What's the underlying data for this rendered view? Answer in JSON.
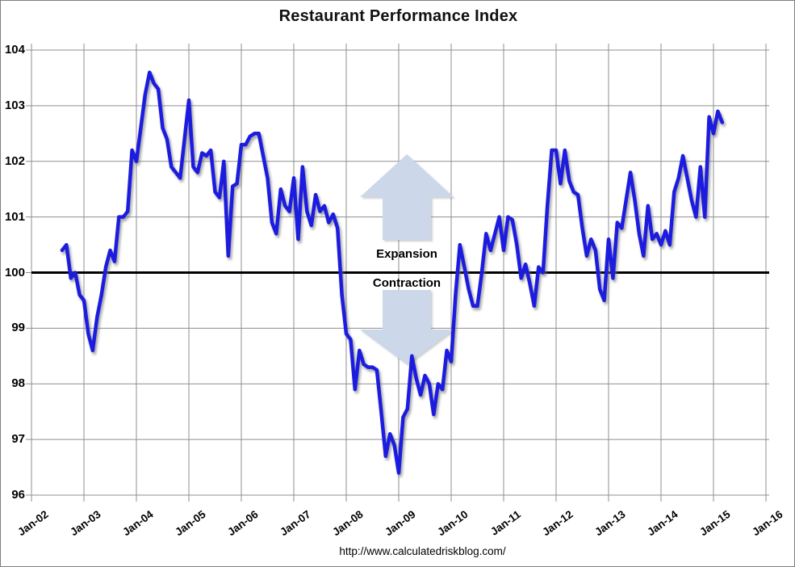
{
  "title": "Restaurant Performance Index",
  "source_url": "http://www.calculatedriskblog.com/",
  "annotations": {
    "above_line": "Expansion",
    "below_line": "Contraction",
    "arrow_color": "#ccd7ea"
  },
  "colors": {
    "line": "#1c1ce0",
    "grid": "#8f8f8f",
    "baseline": "#000000",
    "background": "#ffffff",
    "text": "#000000"
  },
  "chart_data": {
    "type": "line",
    "title": "Restaurant Performance Index",
    "grid": "on",
    "baseline_value": 100,
    "x_axis": {
      "tick_labels": [
        "Jan-02",
        "Jan-03",
        "Jan-04",
        "Jan-05",
        "Jan-06",
        "Jan-07",
        "Jan-08",
        "Jan-09",
        "Jan-10",
        "Jan-11",
        "Jan-12",
        "Jan-13",
        "Jan-14",
        "Jan-15",
        "Jan-16"
      ],
      "months_per_tick": 12
    },
    "y_axis": {
      "min": 96,
      "max": 104,
      "step": 1,
      "tick_labels": [
        "96",
        "97",
        "98",
        "99",
        "100",
        "101",
        "102",
        "103",
        "104"
      ]
    },
    "series": [
      {
        "name": "Restaurant Performance Index",
        "frequency": "monthly",
        "start": "Aug-2002",
        "end": "Mar-2015",
        "values": [
          100.4,
          100.5,
          99.9,
          100.0,
          99.6,
          99.5,
          98.9,
          98.6,
          99.2,
          99.6,
          100.1,
          100.4,
          100.2,
          101.0,
          101.0,
          101.1,
          102.2,
          102.0,
          102.6,
          103.2,
          103.6,
          103.4,
          103.3,
          102.6,
          102.4,
          101.9,
          101.8,
          101.7,
          102.4,
          103.1,
          101.9,
          101.8,
          102.15,
          102.1,
          102.2,
          101.45,
          101.35,
          102.0,
          100.3,
          101.55,
          101.6,
          102.3,
          102.3,
          102.45,
          102.5,
          102.5,
          102.1,
          101.7,
          100.9,
          100.7,
          101.5,
          101.2,
          101.1,
          101.7,
          100.6,
          101.9,
          101.1,
          100.85,
          101.4,
          101.1,
          101.2,
          100.9,
          101.05,
          100.8,
          99.6,
          98.9,
          98.8,
          97.9,
          98.6,
          98.35,
          98.3,
          98.3,
          98.25,
          97.5,
          96.7,
          97.1,
          96.9,
          96.4,
          97.4,
          97.55,
          98.5,
          98.1,
          97.8,
          98.15,
          98.0,
          97.45,
          98.0,
          97.9,
          98.6,
          98.4,
          99.6,
          100.5,
          100.1,
          99.7,
          99.4,
          99.4,
          100.0,
          100.7,
          100.4,
          100.7,
          101.0,
          100.4,
          101.0,
          100.95,
          100.5,
          99.9,
          100.15,
          99.8,
          99.4,
          100.1,
          100.0,
          101.2,
          102.2,
          102.2,
          101.6,
          102.2,
          101.65,
          101.45,
          101.4,
          100.8,
          100.3,
          100.6,
          100.4,
          99.7,
          99.5,
          100.6,
          99.9,
          100.9,
          100.8,
          101.3,
          101.8,
          101.3,
          100.7,
          100.3,
          101.2,
          100.6,
          100.7,
          100.5,
          100.75,
          100.5,
          101.45,
          101.7,
          102.1,
          101.7,
          101.3,
          101.0,
          101.9,
          101.0,
          102.8,
          102.5,
          102.9,
          102.7
        ]
      }
    ]
  }
}
